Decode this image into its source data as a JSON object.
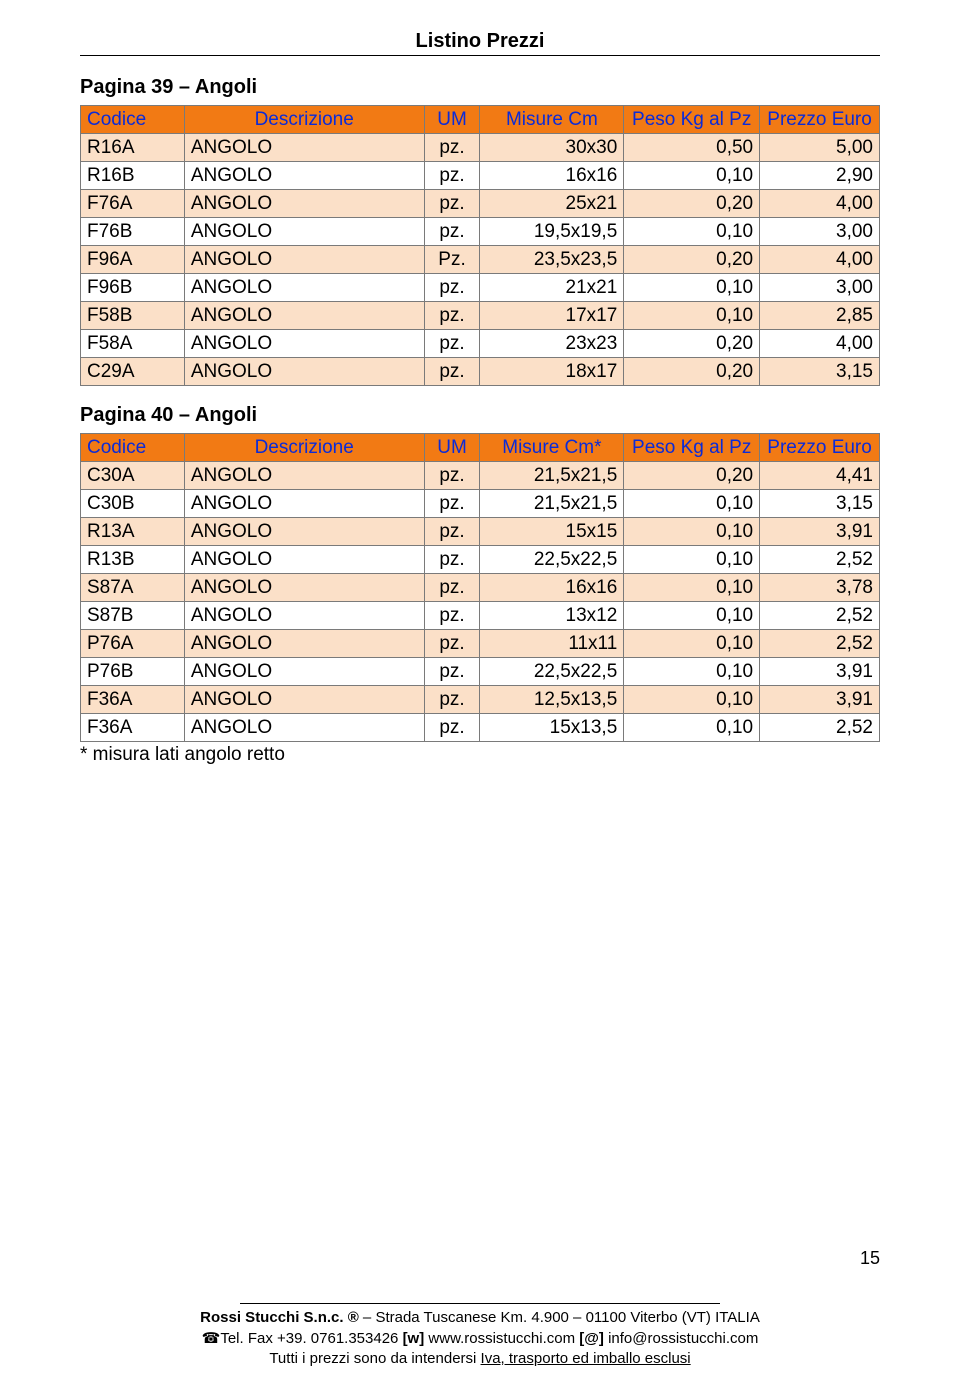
{
  "doc_title": "Listino Prezzi",
  "sections": [
    {
      "title": "Pagina 39 – Angoli",
      "headers": {
        "codice": "Codice",
        "descrizione": "Descrizione",
        "um": "UM",
        "misure": "Misure Cm",
        "peso": "Peso Kg al Pz",
        "prezzo": "Prezzo Euro"
      },
      "rows": [
        {
          "codice": "R16A",
          "desc": "ANGOLO",
          "um": "pz.",
          "misure": "30x30",
          "peso": "0,50",
          "prezzo": "5,00"
        },
        {
          "codice": "R16B",
          "desc": "ANGOLO",
          "um": "pz.",
          "misure": "16x16",
          "peso": "0,10",
          "prezzo": "2,90"
        },
        {
          "codice": "F76A",
          "desc": "ANGOLO",
          "um": "pz.",
          "misure": "25x21",
          "peso": "0,20",
          "prezzo": "4,00"
        },
        {
          "codice": "F76B",
          "desc": "ANGOLO",
          "um": "pz.",
          "misure": "19,5x19,5",
          "peso": "0,10",
          "prezzo": "3,00"
        },
        {
          "codice": "F96A",
          "desc": "ANGOLO",
          "um": "Pz.",
          "misure": "23,5x23,5",
          "peso": "0,20",
          "prezzo": "4,00"
        },
        {
          "codice": "F96B",
          "desc": "ANGOLO",
          "um": "pz.",
          "misure": "21x21",
          "peso": "0,10",
          "prezzo": "3,00"
        },
        {
          "codice": "F58B",
          "desc": "ANGOLO",
          "um": "pz.",
          "misure": "17x17",
          "peso": "0,10",
          "prezzo": "2,85"
        },
        {
          "codice": "F58A",
          "desc": "ANGOLO",
          "um": "pz.",
          "misure": "23x23",
          "peso": "0,20",
          "prezzo": "4,00"
        },
        {
          "codice": "C29A",
          "desc": "ANGOLO",
          "um": "pz.",
          "misure": "18x17",
          "peso": "0,20",
          "prezzo": "3,15"
        }
      ],
      "footnote": ""
    },
    {
      "title": "Pagina 40 – Angoli",
      "headers": {
        "codice": "Codice",
        "descrizione": "Descrizione",
        "um": "UM",
        "misure": "Misure Cm*",
        "peso": "Peso Kg al Pz",
        "prezzo": "Prezzo Euro"
      },
      "rows": [
        {
          "codice": "C30A",
          "desc": "ANGOLO",
          "um": "pz.",
          "misure": "21,5x21,5",
          "peso": "0,20",
          "prezzo": "4,41"
        },
        {
          "codice": "C30B",
          "desc": "ANGOLO",
          "um": "pz.",
          "misure": "21,5x21,5",
          "peso": "0,10",
          "prezzo": "3,15"
        },
        {
          "codice": "R13A",
          "desc": "ANGOLO",
          "um": "pz.",
          "misure": "15x15",
          "peso": "0,10",
          "prezzo": "3,91"
        },
        {
          "codice": "R13B",
          "desc": "ANGOLO",
          "um": "pz.",
          "misure": "22,5x22,5",
          "peso": "0,10",
          "prezzo": "2,52"
        },
        {
          "codice": "S87A",
          "desc": "ANGOLO",
          "um": "pz.",
          "misure": "16x16",
          "peso": "0,10",
          "prezzo": "3,78"
        },
        {
          "codice": "S87B",
          "desc": "ANGOLO",
          "um": "pz.",
          "misure": "13x12",
          "peso": "0,10",
          "prezzo": "2,52"
        },
        {
          "codice": "P76A",
          "desc": "ANGOLO",
          "um": "pz.",
          "misure": "11x11",
          "peso": "0,10",
          "prezzo": "2,52"
        },
        {
          "codice": "P76B",
          "desc": "ANGOLO",
          "um": "pz.",
          "misure": "22,5x22,5",
          "peso": "0,10",
          "prezzo": "3,91"
        },
        {
          "codice": "F36A",
          "desc": "ANGOLO",
          "um": "pz.",
          "misure": "12,5x13,5",
          "peso": "0,10",
          "prezzo": "3,91"
        },
        {
          "codice": "F36A",
          "desc": "ANGOLO",
          "um": "pz.",
          "misure": "15x13,5",
          "peso": "0,10",
          "prezzo": "2,52"
        }
      ],
      "footnote": "* misura lati angolo retto"
    }
  ],
  "colors": {
    "header_bg": "#f27a14",
    "stripe_bg": "#fbe0c8",
    "header_text": "#0b2bd8",
    "border": "#7a7a7a"
  },
  "page_number": "15",
  "footer": {
    "company_bold": "Rossi Stucchi S.n.c. ®",
    "company_rest": " – Strada Tuscanese Km. 4.900 – 01100 Viterbo (VT) ITALIA",
    "phone_icon": "☎",
    "line2_a": "Tel. Fax +39. 0761.353426 ",
    "line2_b": "[w]",
    "line2_c": " www.rossistucchi.com ",
    "line2_d": "[@]",
    "line2_e": " info@rossistucchi.com",
    "line3_a": "Tutti i prezzi sono da intendersi ",
    "line3_b": "Iva, trasporto ed imballo esclusi"
  }
}
